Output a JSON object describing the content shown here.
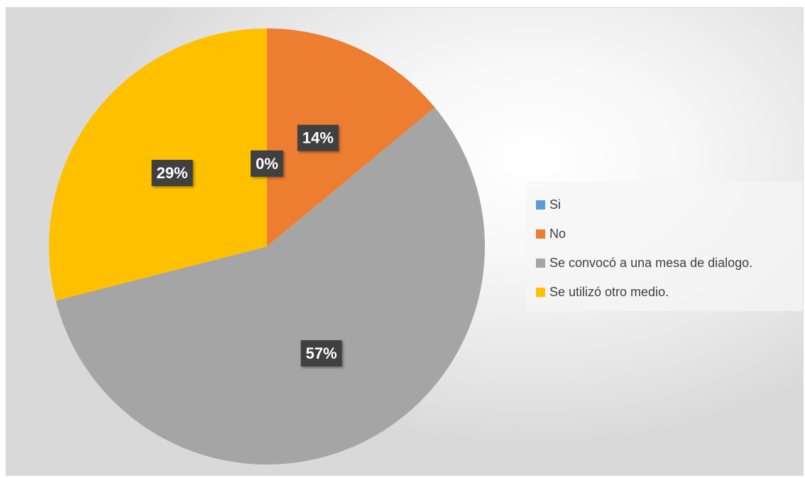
{
  "chart_data": {
    "type": "pie",
    "categories": [
      "Si",
      "No",
      "Se convocó a una mesa de dialogo.",
      "Se utilizó otro medio."
    ],
    "values": [
      0,
      14,
      57,
      29
    ],
    "data_labels": [
      "0%",
      "14%",
      "57%",
      "29%"
    ],
    "colors": [
      "#5b9bd5",
      "#ed7d31",
      "#a5a5a5",
      "#ffc000"
    ],
    "start_angle": "12 o'clock, clockwise",
    "legend_position": "right"
  },
  "legend": {
    "items": [
      {
        "label": "Si",
        "color": "#5b9bd5"
      },
      {
        "label": "No",
        "color": "#ed7d31"
      },
      {
        "label": "Se convocó a una mesa de dialogo.",
        "color": "#a5a5a5"
      },
      {
        "label": "Se utilizó otro medio.",
        "color": "#ffc000"
      }
    ]
  }
}
